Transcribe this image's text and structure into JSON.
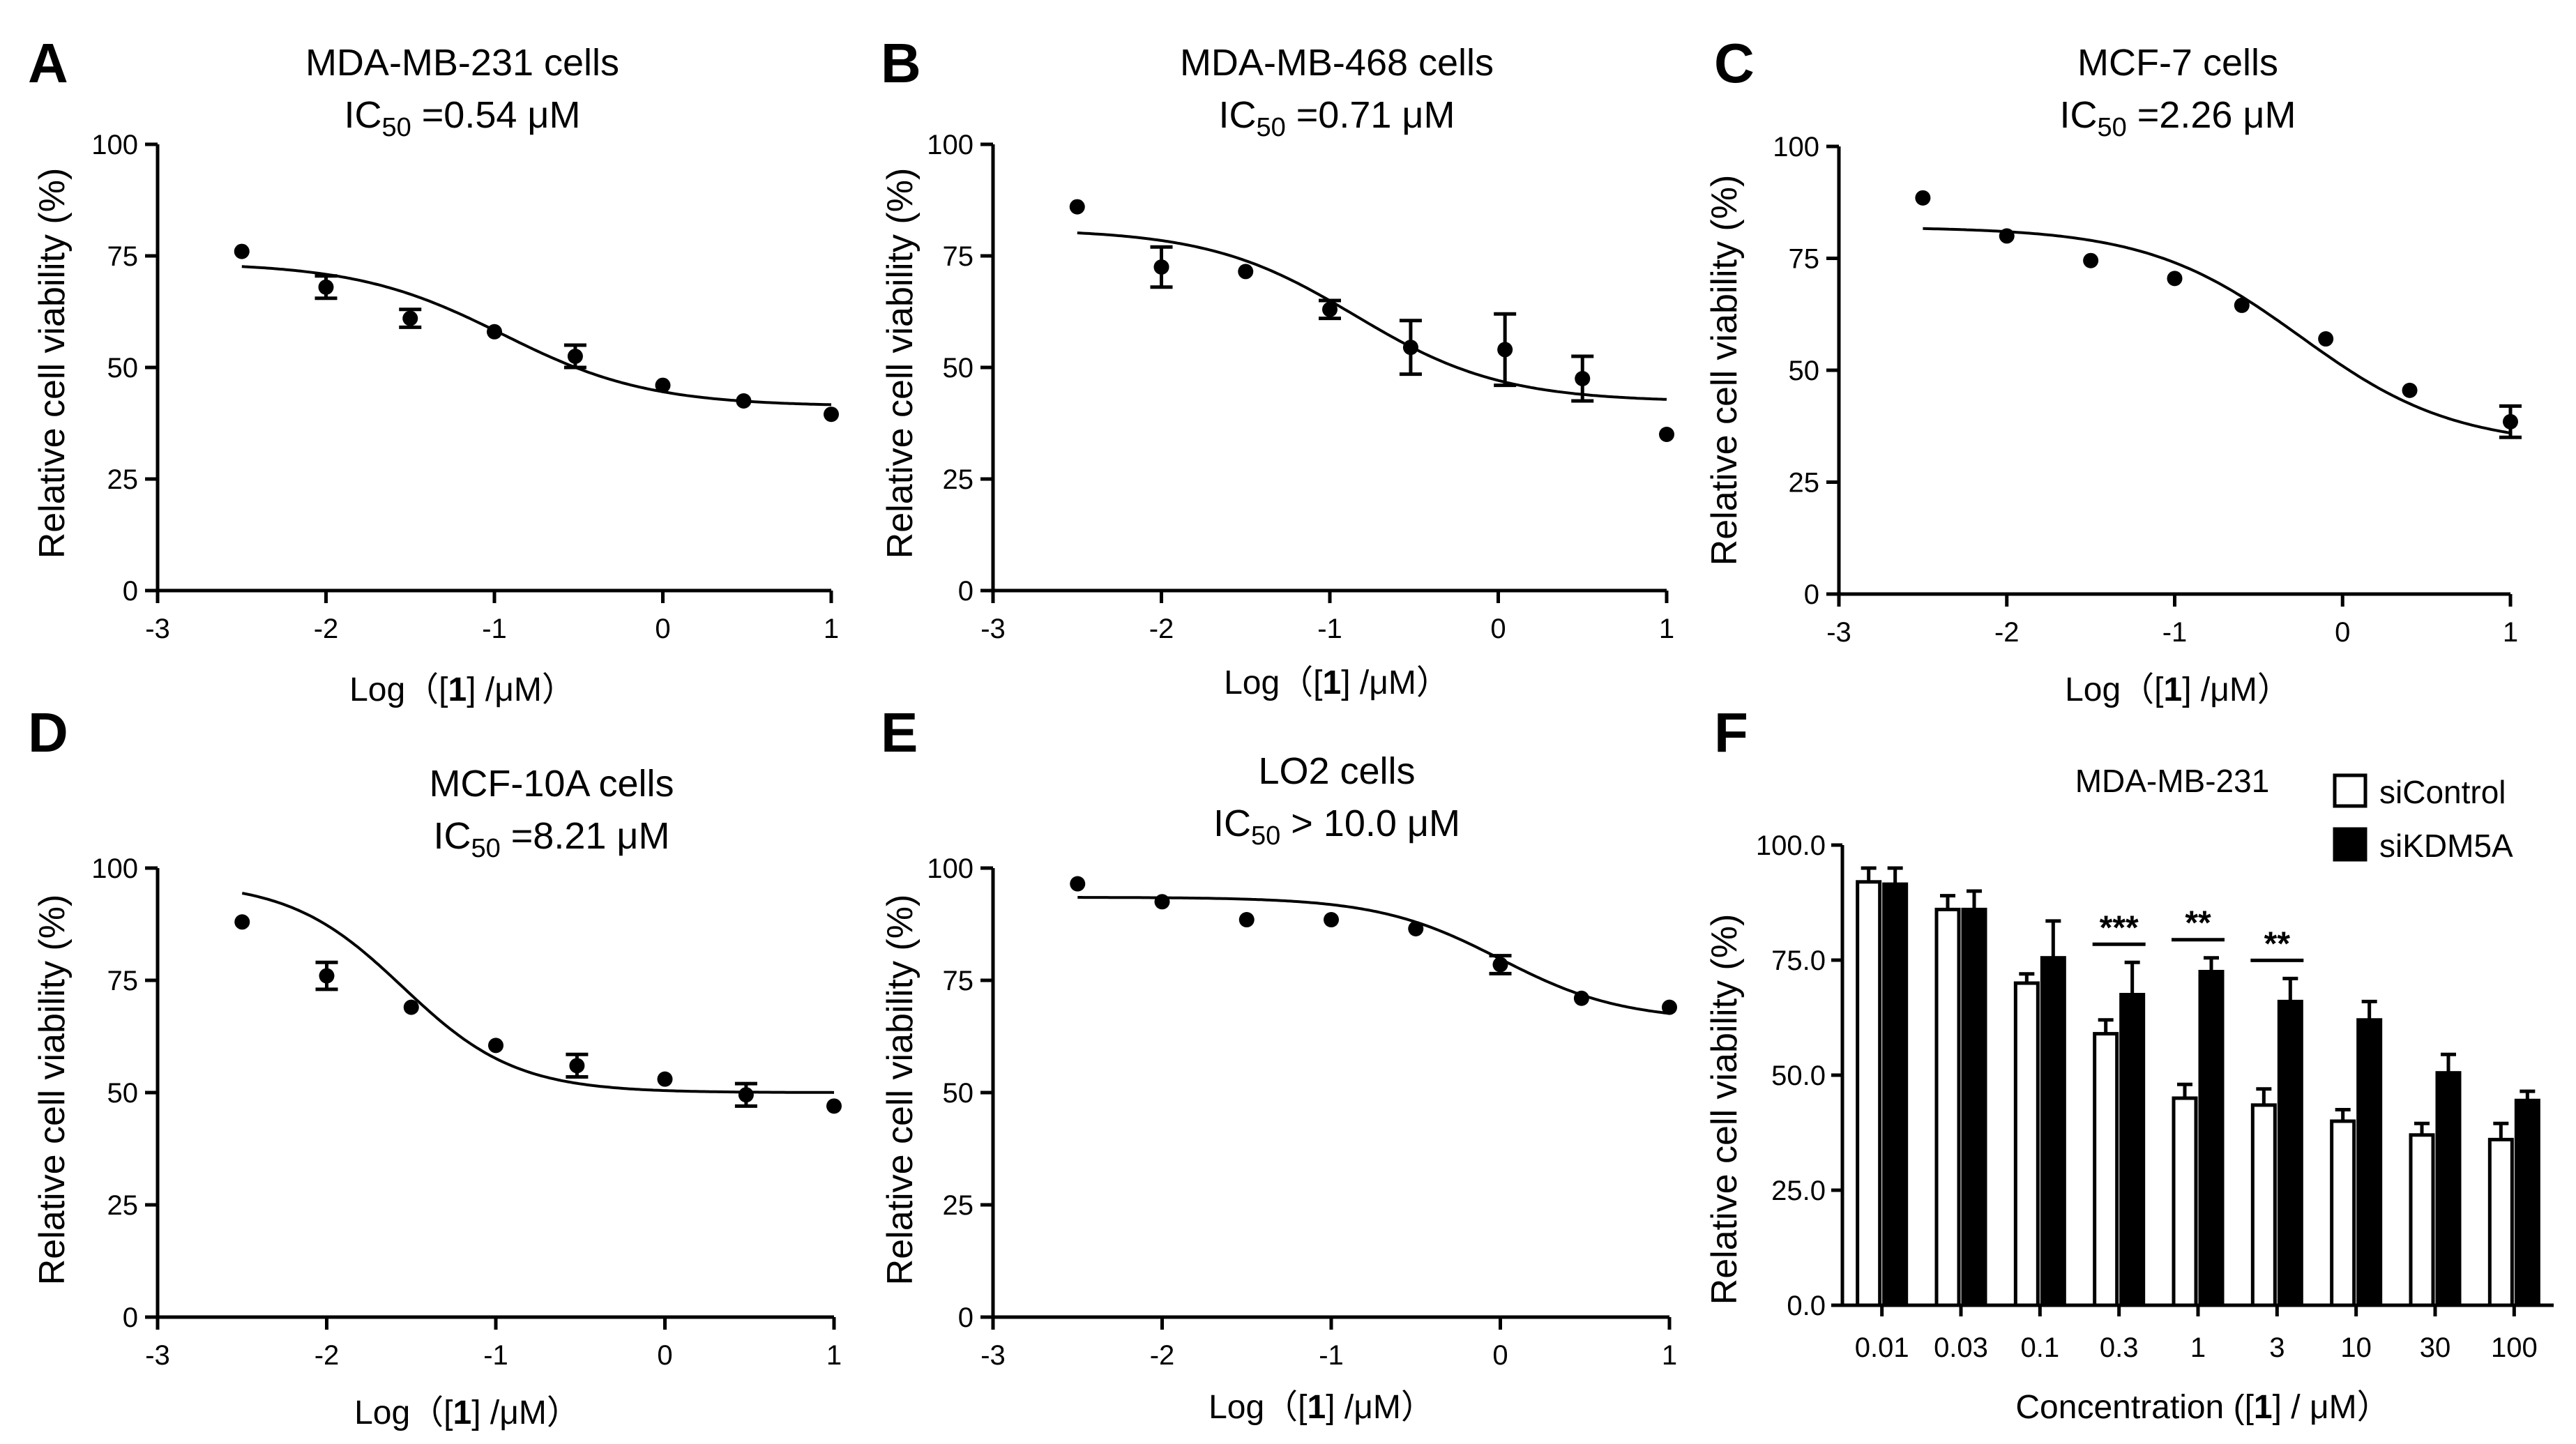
{
  "chart_data": [
    {
      "panel": "A",
      "type": "scatter",
      "title_line1": "MDA-MB-231 cells",
      "ic50_prefix": "IC",
      "ic50_sub": "50",
      "ic50_value": " =0.54 μM",
      "ylabel": "Relative cell viability (%)",
      "xlabel_prefix": "Log（[",
      "xlabel_bold": "1",
      "xlabel_suffix": "] /μM）",
      "xlim": [
        -3,
        1
      ],
      "ylim": [
        0,
        100
      ],
      "xticks": [
        "-3",
        "-2",
        "-1",
        "0",
        "1"
      ],
      "yticks": [
        "0",
        "25",
        "50",
        "75",
        "100"
      ],
      "points": [
        {
          "x": -2.5,
          "y": 76,
          "err": 0
        },
        {
          "x": -2.0,
          "y": 68,
          "err": 2.5
        },
        {
          "x": -1.5,
          "y": 61,
          "err": 2
        },
        {
          "x": -1.0,
          "y": 58,
          "err": 0
        },
        {
          "x": -0.52,
          "y": 52.5,
          "err": 2.5
        },
        {
          "x": 0.0,
          "y": 46,
          "err": 0
        },
        {
          "x": 0.48,
          "y": 42.5,
          "err": 0
        },
        {
          "x": 1.0,
          "y": 39.5,
          "err": 0
        }
      ],
      "fit": {
        "top": 73.5,
        "bottom": 41.3,
        "logic50": -0.95,
        "hill": 1.0
      }
    },
    {
      "panel": "B",
      "type": "scatter",
      "title_line1": "MDA-MB-468 cells",
      "ic50_prefix": "IC",
      "ic50_sub": "50",
      "ic50_value": " =0.71 μM",
      "ylabel": "Relative cell viability (%)",
      "xlabel_prefix": "Log（[",
      "xlabel_bold": "1",
      "xlabel_suffix": "] /μM）",
      "xlim": [
        -3,
        1
      ],
      "ylim": [
        0,
        100
      ],
      "xticks": [
        "-3",
        "-2",
        "-1",
        "0",
        "1"
      ],
      "yticks": [
        "0",
        "25",
        "50",
        "75",
        "100"
      ],
      "points": [
        {
          "x": -2.5,
          "y": 86,
          "err": 0
        },
        {
          "x": -2.0,
          "y": 72.5,
          "err": 4.5
        },
        {
          "x": -1.5,
          "y": 71.5,
          "err": 0
        },
        {
          "x": -1.0,
          "y": 63,
          "err": 2
        },
        {
          "x": -0.52,
          "y": 54.5,
          "err": 6
        },
        {
          "x": 0.04,
          "y": 54,
          "err": 8
        },
        {
          "x": 0.5,
          "y": 47.5,
          "err": 5
        },
        {
          "x": 1.0,
          "y": 35,
          "err": 0
        }
      ],
      "fit": {
        "top": 81,
        "bottom": 42.3,
        "logic50": -0.85,
        "hill": 1.0
      }
    },
    {
      "panel": "C",
      "type": "scatter",
      "title_line1": "MCF-7 cells",
      "ic50_prefix": "IC",
      "ic50_sub": "50",
      "ic50_value": " =2.26 μM",
      "ylabel": "Relative cell viability (%)",
      "xlabel_prefix": "Log（[",
      "xlabel_bold": "1",
      "xlabel_suffix": "] /μM）",
      "xlim": [
        -3,
        1
      ],
      "ylim": [
        0,
        100
      ],
      "xticks": [
        "-3",
        "-2",
        "-1",
        "0",
        "1"
      ],
      "yticks": [
        "0",
        "25",
        "50",
        "75",
        "100"
      ],
      "points": [
        {
          "x": -2.5,
          "y": 88.5,
          "err": 0
        },
        {
          "x": -2.0,
          "y": 80,
          "err": 0
        },
        {
          "x": -1.5,
          "y": 74.5,
          "err": 0
        },
        {
          "x": -1.0,
          "y": 70.5,
          "err": 0
        },
        {
          "x": -0.6,
          "y": 64.5,
          "err": 0
        },
        {
          "x": -0.1,
          "y": 57,
          "err": 0
        },
        {
          "x": 0.4,
          "y": 45.5,
          "err": 0
        },
        {
          "x": 1.0,
          "y": 38.5,
          "err": 3.5
        }
      ],
      "fit": {
        "top": 82,
        "bottom": 33,
        "logic50": -0.25,
        "hill": 0.95
      }
    },
    {
      "panel": "D",
      "type": "scatter",
      "title_line1": "MCF-10A cells",
      "ic50_prefix": "IC",
      "ic50_sub": "50",
      "ic50_value": " =8.21 μM",
      "ylabel": "Relative cell viability (%)",
      "xlabel_prefix": "Log（[",
      "xlabel_bold": "1",
      "xlabel_suffix": "] /μM）",
      "xlim": [
        -3,
        1
      ],
      "ylim": [
        0,
        100
      ],
      "xticks": [
        "-3",
        "-2",
        "-1",
        "0",
        "1"
      ],
      "yticks": [
        "0",
        "25",
        "50",
        "75",
        "100"
      ],
      "points": [
        {
          "x": -2.5,
          "y": 88,
          "err": 0
        },
        {
          "x": -2.0,
          "y": 76,
          "err": 3
        },
        {
          "x": -1.5,
          "y": 69,
          "err": 0
        },
        {
          "x": -1.0,
          "y": 60.5,
          "err": 0
        },
        {
          "x": -0.52,
          "y": 56,
          "err": 2.5
        },
        {
          "x": 0.0,
          "y": 53,
          "err": 0
        },
        {
          "x": 0.48,
          "y": 49.5,
          "err": 2.5
        },
        {
          "x": 1.0,
          "y": 47,
          "err": 0
        }
      ],
      "fit": {
        "top": 97,
        "bottom": 50,
        "logic50": -1.55,
        "hill": 1.3
      }
    },
    {
      "panel": "E",
      "type": "scatter",
      "title_line1": "LO2 cells",
      "ic50_prefix": "IC",
      "ic50_sub": "50",
      "ic50_value": " > 10.0 μM",
      "ylabel": "Relative cell viability (%)",
      "xlabel_prefix": "Log（[",
      "xlabel_bold": "1",
      "xlabel_suffix": "] /μM）",
      "xlim": [
        -3,
        1
      ],
      "ylim": [
        0,
        100
      ],
      "xticks": [
        "-3",
        "-2",
        "-1",
        "0",
        "1"
      ],
      "yticks": [
        "0",
        "25",
        "50",
        "75",
        "100"
      ],
      "points": [
        {
          "x": -2.5,
          "y": 96.5,
          "err": 0
        },
        {
          "x": -2.0,
          "y": 92.5,
          "err": 0
        },
        {
          "x": -1.5,
          "y": 88.5,
          "err": 0
        },
        {
          "x": -1.0,
          "y": 88.5,
          "err": 0
        },
        {
          "x": -0.5,
          "y": 86.5,
          "err": 0
        },
        {
          "x": 0.0,
          "y": 78.5,
          "err": 2
        },
        {
          "x": 0.48,
          "y": 71,
          "err": 0
        },
        {
          "x": 1.0,
          "y": 69,
          "err": 0
        }
      ],
      "fit": {
        "top": 93.5,
        "bottom": 66,
        "logic50": 0.0,
        "hill": 1.2
      }
    },
    {
      "panel": "F",
      "type": "bar",
      "title": "MDA-MB-231",
      "ylabel": "Relative cell viability (%)",
      "xlabel_prefix": "Concentration ([",
      "xlabel_bold": "1",
      "xlabel_suffix": "] / μM）",
      "ylim": [
        0,
        100
      ],
      "yticks": [
        "0.0",
        "25.0",
        "50.0",
        "75.0",
        "100.0"
      ],
      "categories": [
        "0.01",
        "0.03",
        "0.1",
        "0.3",
        "1",
        "3",
        "10",
        "30",
        "100"
      ],
      "series": [
        {
          "name": "siControl",
          "fill": "#ffffff",
          "values": [
            92,
            86,
            70,
            59,
            45,
            43.5,
            40,
            37,
            36
          ],
          "errors": [
            3,
            3,
            2,
            3,
            3,
            3.5,
            2.5,
            2.5,
            3.5
          ]
        },
        {
          "name": "siKDM5A",
          "fill": "#000000",
          "values": [
            91.5,
            86,
            75.5,
            67.5,
            72.5,
            66,
            62,
            50.5,
            44.5
          ],
          "errors": [
            3.5,
            4,
            8,
            7,
            3,
            5,
            4,
            4,
            2
          ]
        }
      ],
      "significance": [
        {
          "category_index": 3,
          "label": "***"
        },
        {
          "category_index": 4,
          "label": "**"
        },
        {
          "category_index": 5,
          "label": "**"
        }
      ]
    }
  ]
}
